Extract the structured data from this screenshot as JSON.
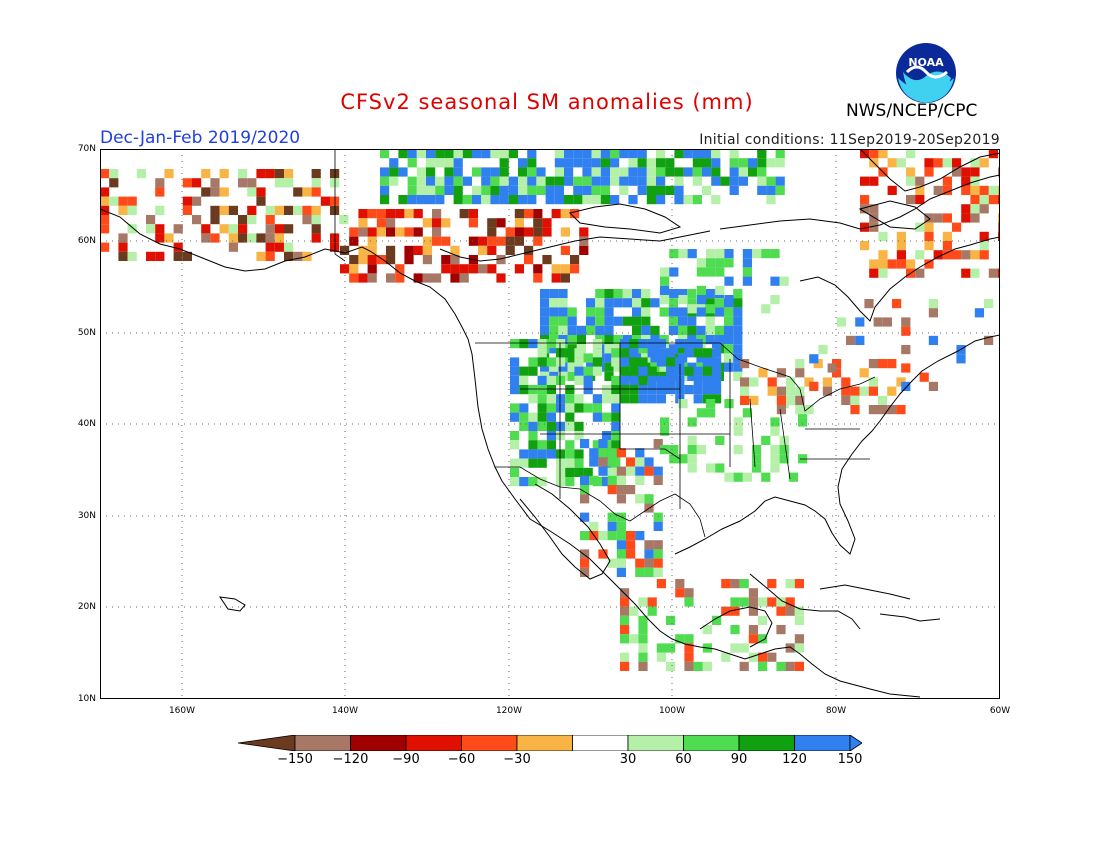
{
  "header": {
    "title": "CFSv2 seasonal SM anomalies (mm)",
    "season": "Dec-Jan-Feb 2019/2020",
    "initial_conditions": "Initial conditions: 11Sep2019-20Sep2019",
    "agency": "NWS/NCEP/CPC",
    "logo_text": "NOAA"
  },
  "axes": {
    "lat_labels": [
      "70N",
      "60N",
      "50N",
      "40N",
      "30N",
      "20N",
      "10N"
    ],
    "lon_labels": [
      "160W",
      "140W",
      "120W",
      "100W",
      "80W",
      "60W"
    ]
  },
  "colorbar": {
    "tick_labels": [
      "-150",
      "-120",
      "-90",
      "-60",
      "-30",
      "30",
      "60",
      "90",
      "120",
      "150"
    ],
    "colors": [
      "#6b3a1f",
      "#a87866",
      "#a00000",
      "#e01000",
      "#ff4a1a",
      "#f8b444",
      "#ffffff",
      "#b4f0a8",
      "#50dc50",
      "#10a010",
      "#3080f0",
      "#3080f0"
    ]
  },
  "legend_colors": {
    "brown_dark": "#6b3a1f",
    "brown": "#a87866",
    "red_dark": "#a00000",
    "red": "#e01000",
    "orange": "#ff4a1a",
    "yellow": "#f8b444",
    "green_light": "#b4f0a8",
    "green": "#50dc50",
    "green_dark": "#10a010",
    "blue": "#3080f0"
  }
}
